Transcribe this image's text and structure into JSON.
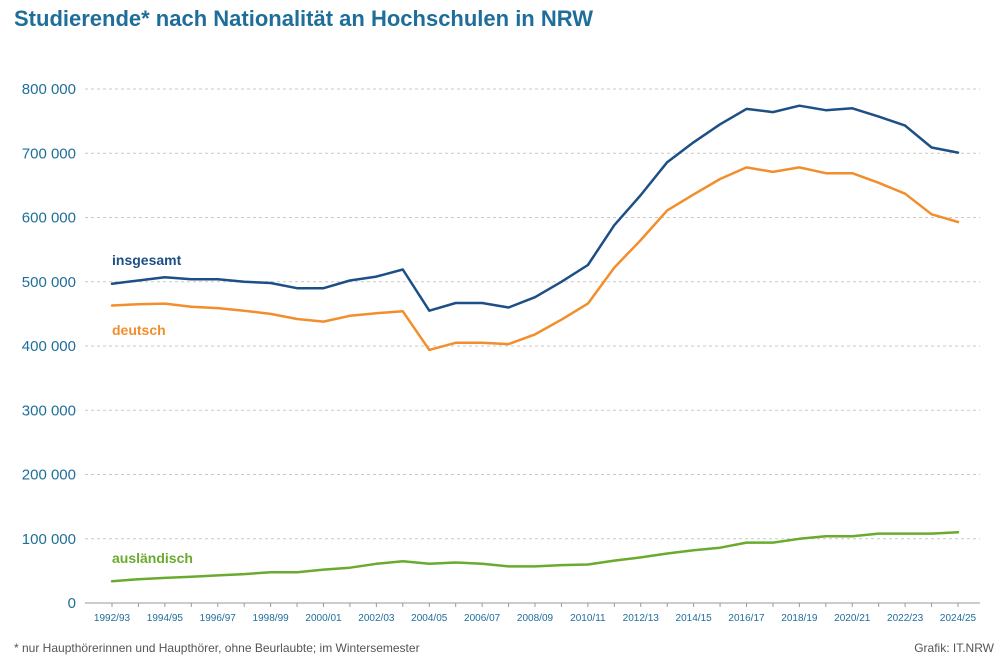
{
  "chart_data": {
    "type": "line",
    "title": "Studierende* nach Nationalität an Hochschulen in NRW",
    "footnote": "* nur Haupthörerinnen und Haupthörer, ohne Beurlaubte; im Wintersemester",
    "source": "Grafik: IT.NRW",
    "ylim": [
      0,
      800000
    ],
    "yticks": [
      {
        "value": 0,
        "label": "0"
      },
      {
        "value": 100000,
        "label": "100 000"
      },
      {
        "value": 200000,
        "label": "200 000"
      },
      {
        "value": 300000,
        "label": "300 000"
      },
      {
        "value": 400000,
        "label": "400 000"
      },
      {
        "value": 500000,
        "label": "500 000"
      },
      {
        "value": 600000,
        "label": "600 000"
      },
      {
        "value": 700000,
        "label": "700 000"
      },
      {
        "value": 800000,
        "label": "800 000"
      }
    ],
    "grid": true,
    "categories": [
      "1992/93",
      "1993/94",
      "1994/95",
      "1995/96",
      "1996/97",
      "1997/98",
      "1998/99",
      "1999/00",
      "2000/01",
      "2001/02",
      "2002/03",
      "2003/04",
      "2004/05",
      "2005/06",
      "2006/07",
      "2007/08",
      "2008/09",
      "2009/10",
      "2010/11",
      "2011/12",
      "2012/13",
      "2013/14",
      "2014/15",
      "2015/16",
      "2016/17",
      "2017/18",
      "2018/19",
      "2019/20",
      "2020/21",
      "2021/22",
      "2022/23",
      "2023/24",
      "2024/25"
    ],
    "labeled_categories": [
      "1992/93",
      "1994/95",
      "1996/97",
      "1998/99",
      "2000/01",
      "2002/03",
      "2004/05",
      "2006/07",
      "2008/09",
      "2010/11",
      "2012/13",
      "2014/15",
      "2016/17",
      "2018/19",
      "2020/21",
      "2022/23",
      "2024/25"
    ],
    "series": [
      {
        "name": "insgesamt",
        "color": "#1d4f86",
        "values": [
          497000,
          502000,
          507000,
          504000,
          504000,
          500000,
          498000,
          490000,
          490000,
          502000,
          508000,
          519000,
          455000,
          467000,
          467000,
          460000,
          476000,
          500000,
          526000,
          588000,
          635000,
          686000,
          717000,
          745000,
          769000,
          764000,
          774000,
          767000,
          770000,
          757000,
          743000,
          709000,
          701000
        ]
      },
      {
        "name": "deutsch",
        "color": "#f28e2b",
        "values": [
          463000,
          465000,
          466000,
          461000,
          459000,
          455000,
          450000,
          442000,
          438000,
          447000,
          451000,
          454000,
          394000,
          405000,
          405000,
          403000,
          418000,
          441000,
          466000,
          522000,
          565000,
          611000,
          636000,
          660000,
          678000,
          671000,
          678000,
          669000,
          669000,
          654000,
          637000,
          605000,
          593000
        ]
      },
      {
        "name": "ausländisch",
        "color": "#6aab2e",
        "values": [
          34000,
          37000,
          39000,
          41000,
          43000,
          45000,
          48000,
          48000,
          52000,
          55000,
          61000,
          65000,
          61000,
          63000,
          61000,
          57000,
          57000,
          59000,
          60000,
          66000,
          71000,
          77000,
          82000,
          86000,
          94000,
          94000,
          100000,
          104000,
          104000,
          108000,
          108000,
          108000,
          110000
        ]
      }
    ]
  }
}
